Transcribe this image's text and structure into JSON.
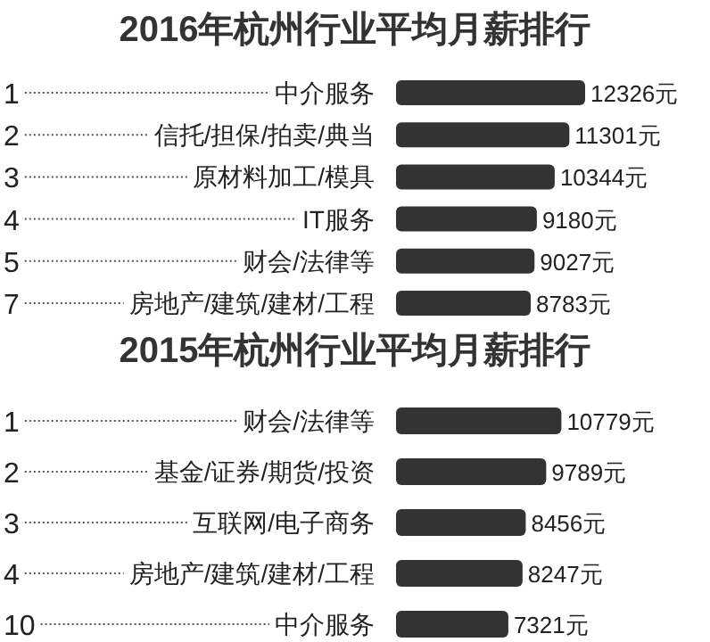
{
  "chart_data": [
    {
      "type": "bar",
      "orientation": "horizontal",
      "title": "2016年杭州行业平均月薪排行",
      "categories": [
        "中介服务",
        "信托/担保/拍卖/典当",
        "原材料加工/模具",
        "IT服务",
        "财会/法律等",
        "房地产/建筑/建材/工程"
      ],
      "values": [
        12326,
        11301,
        10344,
        9180,
        9027,
        8783
      ],
      "value_labels": [
        "12326元",
        "11301元",
        "10344元",
        "9180元",
        "9027元",
        "8783元"
      ],
      "color": "#333333",
      "annotations": [
        "1",
        "2",
        "3",
        "4",
        "5",
        "7"
      ]
    },
    {
      "type": "bar",
      "orientation": "horizontal",
      "title": "2015年杭州行业平均月薪排行",
      "categories": [
        "财会/法律等",
        "基金/证券/期货/投资",
        "互联网/电子商务",
        "房地产/建筑/建材/工程",
        "中介服务"
      ],
      "values": [
        10779,
        9789,
        8456,
        8247,
        7321
      ],
      "value_labels": [
        "10779元",
        "9789元",
        "8456元",
        "8247元",
        "7321元"
      ],
      "color": "#333333",
      "annotations": [
        "1",
        "2",
        "3",
        "4",
        "10"
      ]
    }
  ]
}
